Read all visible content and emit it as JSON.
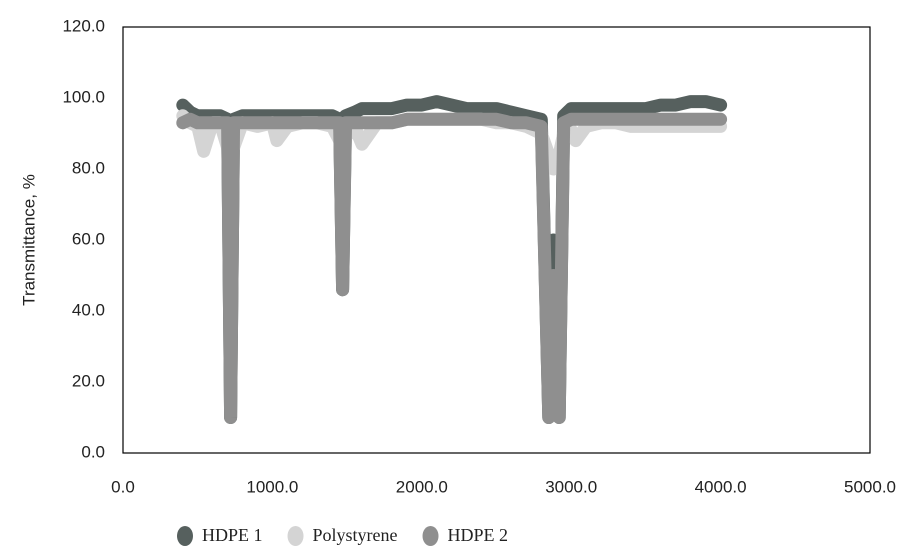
{
  "chart_data": {
    "type": "line",
    "y_label": "Transmittance, %",
    "x": [
      400,
      450,
      500,
      540,
      600,
      650,
      700,
      720,
      740,
      800,
      900,
      1000,
      1030,
      1100,
      1200,
      1300,
      1400,
      1450,
      1470,
      1490,
      1550,
      1600,
      1700,
      1800,
      1900,
      2000,
      2100,
      2200,
      2300,
      2400,
      2500,
      2600,
      2700,
      2800,
      2850,
      2880,
      2920,
      2950,
      3000,
      3030,
      3100,
      3200,
      3300,
      3400,
      3500,
      3600,
      3700,
      3800,
      3900,
      4000
    ],
    "series": [
      {
        "name": "HDPE 1",
        "color": "#56605e",
        "values": [
          98,
          96,
          95,
          95,
          95,
          95,
          94,
          10,
          94,
          95,
          95,
          95,
          95,
          95,
          95,
          95,
          95,
          94,
          46,
          95,
          96,
          97,
          97,
          97,
          98,
          98,
          99,
          98,
          97,
          97,
          97,
          96,
          95,
          94,
          10,
          60,
          10,
          95,
          97,
          97,
          97,
          97,
          97,
          97,
          97,
          98,
          98,
          99,
          99,
          98
        ]
      },
      {
        "name": "Polystyrene",
        "color": "#d4d4d4",
        "values": [
          95,
          93,
          92,
          85,
          93,
          93,
          86,
          92,
          86,
          93,
          92,
          93,
          88,
          92,
          93,
          93,
          92,
          88,
          92,
          89,
          92,
          87,
          93,
          93,
          94,
          94,
          94,
          94,
          94,
          94,
          93,
          93,
          92,
          90,
          84,
          80,
          84,
          90,
          91,
          88,
          92,
          93,
          93,
          92,
          92,
          92,
          92,
          92,
          92,
          92
        ]
      },
      {
        "name": "HDPE 2",
        "color": "#8f8f8f",
        "values": [
          93,
          94,
          93,
          93,
          93,
          93,
          93,
          10,
          93,
          93,
          93,
          93,
          93,
          93,
          93,
          93,
          93,
          93,
          46,
          93,
          93,
          93,
          93,
          93,
          94,
          94,
          94,
          94,
          94,
          94,
          94,
          93,
          93,
          92,
          10,
          50,
          10,
          93,
          94,
          94,
          94,
          94,
          94,
          94,
          94,
          94,
          94,
          94,
          94,
          94
        ]
      }
    ],
    "xlim": [
      0,
      5000
    ],
    "xticks": [
      {
        "value": 0,
        "label": "0.0"
      },
      {
        "value": 1000,
        "label": "1000.0"
      },
      {
        "value": 2000,
        "label": "2000.0"
      },
      {
        "value": 3000,
        "label": "3000.0"
      },
      {
        "value": 4000,
        "label": "4000.0"
      },
      {
        "value": 5000,
        "label": "5000.0"
      }
    ],
    "ylim": [
      0,
      120
    ],
    "yticks": [
      {
        "value": 0,
        "label": "0.0"
      },
      {
        "value": 20,
        "label": "20.0"
      },
      {
        "value": 40,
        "label": "40.0"
      },
      {
        "value": 60,
        "label": "60.0"
      },
      {
        "value": 80,
        "label": "80.0"
      },
      {
        "value": 100,
        "label": "100.0"
      },
      {
        "value": 120,
        "label": "120.0"
      }
    ],
    "legend": "bottom"
  }
}
